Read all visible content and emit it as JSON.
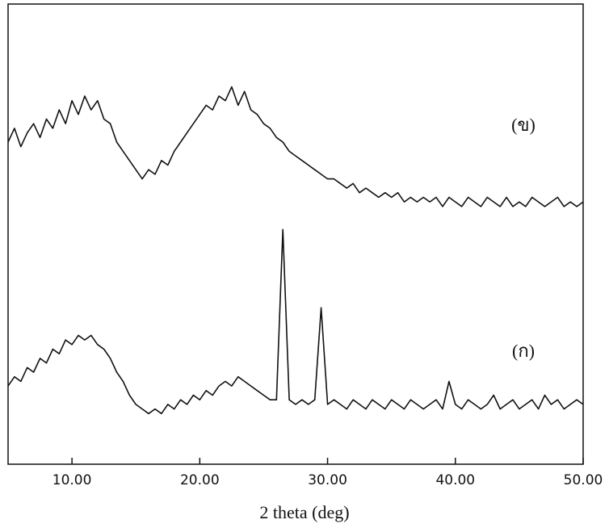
{
  "chart_data": {
    "type": "line",
    "x_label": "2 theta (deg)",
    "xlim": [
      5,
      50
    ],
    "ylim": [
      0,
      100
    ],
    "xticks": [
      {
        "value": 10,
        "label": "10.00"
      },
      {
        "value": 20,
        "label": "20.00"
      },
      {
        "value": 30,
        "label": "30.00"
      },
      {
        "value": 40,
        "label": "40.00"
      },
      {
        "value": 50,
        "label": "50.00"
      }
    ],
    "x": [
      5,
      5.5,
      6,
      6.5,
      7,
      7.5,
      8,
      8.5,
      9,
      9.5,
      10,
      10.5,
      11,
      11.5,
      12,
      12.5,
      13,
      13.5,
      14,
      14.5,
      15,
      15.5,
      16,
      16.5,
      17,
      17.5,
      18,
      18.5,
      19,
      19.5,
      20,
      20.5,
      21,
      21.5,
      22,
      22.5,
      23,
      23.5,
      24,
      24.5,
      25,
      25.5,
      26,
      26.5,
      27,
      27.5,
      28,
      28.5,
      29,
      29.5,
      30,
      30.5,
      31,
      31.5,
      32,
      32.5,
      33,
      33.5,
      34,
      34.5,
      35,
      35.5,
      36,
      36.5,
      37,
      37.5,
      38,
      38.5,
      39,
      39.5,
      40,
      40.5,
      41,
      41.5,
      42,
      42.5,
      43,
      43.5,
      44,
      44.5,
      45,
      45.5,
      46,
      46.5,
      47,
      47.5,
      48,
      48.5,
      49,
      49.5,
      50
    ],
    "series": [
      {
        "name": "(ข)",
        "color": "#111111",
        "values": [
          70,
          73,
          69,
          72,
          74,
          71,
          75,
          73,
          77,
          74,
          79,
          76,
          80,
          77,
          79,
          75,
          74,
          70,
          68,
          66,
          64,
          62,
          64,
          63,
          66,
          65,
          68,
          70,
          72,
          74,
          76,
          78,
          77,
          80,
          79,
          82,
          78,
          81,
          77,
          76,
          74,
          73,
          71,
          70,
          68,
          67,
          66,
          65,
          64,
          63,
          62,
          62,
          61,
          60,
          61,
          59,
          60,
          59,
          58,
          59,
          58,
          59,
          57,
          58,
          57,
          58,
          57,
          58,
          56,
          58,
          57,
          56,
          58,
          57,
          56,
          58,
          57,
          56,
          58,
          56,
          57,
          56,
          58,
          57,
          56,
          57,
          58,
          56,
          57,
          56,
          57
        ]
      },
      {
        "name": "(ก)",
        "color": "#111111",
        "values": [
          17,
          19,
          18,
          21,
          20,
          23,
          22,
          25,
          24,
          27,
          26,
          28,
          27,
          28,
          26,
          25,
          23,
          20,
          18,
          15,
          13,
          12,
          11,
          12,
          11,
          13,
          12,
          14,
          13,
          15,
          14,
          16,
          15,
          17,
          18,
          17,
          19,
          18,
          17,
          16,
          15,
          14,
          14,
          51,
          14,
          13,
          14,
          13,
          14,
          34,
          13,
          14,
          13,
          12,
          14,
          13,
          12,
          14,
          13,
          12,
          14,
          13,
          12,
          14,
          13,
          12,
          13,
          14,
          12,
          18,
          13,
          12,
          14,
          13,
          12,
          13,
          15,
          12,
          13,
          14,
          12,
          13,
          14,
          12,
          15,
          13,
          14,
          12,
          13,
          14,
          13
        ]
      }
    ]
  }
}
